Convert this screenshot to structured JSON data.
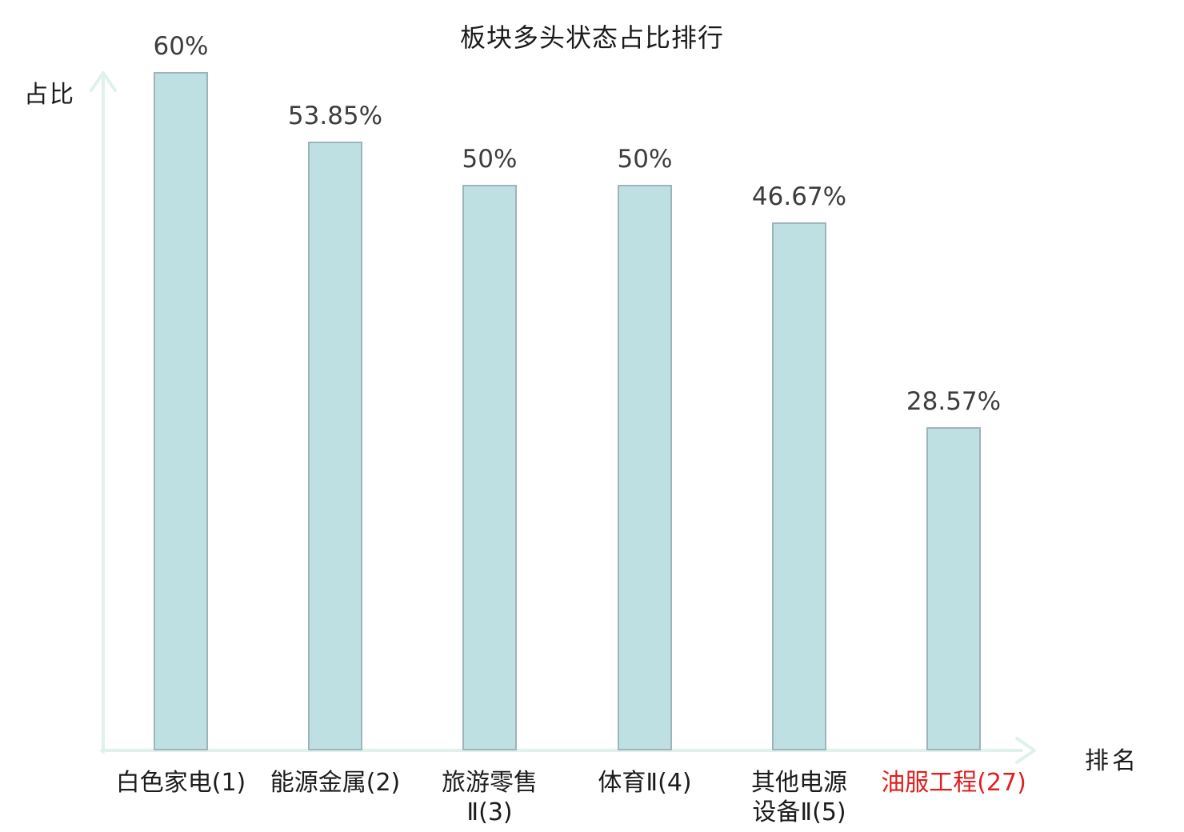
{
  "title": "板块多头状态占比排行",
  "axes": {
    "y_label": "占比",
    "x_label": "排名"
  },
  "colors": {
    "bar_fill": "#bfe0e3",
    "bar_border": "#9db4ba",
    "axis": "#dff1ec",
    "value_text": "#3d3d3d",
    "category_text": "#1c1c1c",
    "highlight_text": "#e01f1f",
    "background": "#ffffff"
  },
  "chart_data": {
    "type": "bar",
    "title": "板块多头状态占比排行",
    "xlabel": "排名",
    "ylabel": "占比",
    "categories": [
      "白色家电(1)",
      "能源金属(2)",
      "旅游零售Ⅱ(3)",
      "体育Ⅱ(4)",
      "其他电源设备Ⅱ(5)",
      "油服工程(27)"
    ],
    "category_lines": [
      [
        "白色家电(1)"
      ],
      [
        "能源金属(2)"
      ],
      [
        "旅游零售",
        "Ⅱ(3)"
      ],
      [
        "体育Ⅱ(4)"
      ],
      [
        "其他电源",
        "设备Ⅱ(5)"
      ],
      [
        "油服工程(27)"
      ]
    ],
    "values": [
      60,
      53.85,
      50,
      50,
      46.67,
      28.57
    ],
    "value_labels": [
      "60%",
      "53.85%",
      "50%",
      "50%",
      "46.67%",
      "28.57%"
    ],
    "unit": "percent",
    "ylim": [
      0,
      60
    ],
    "grid": false,
    "legend": null,
    "highlight_index": 5
  }
}
